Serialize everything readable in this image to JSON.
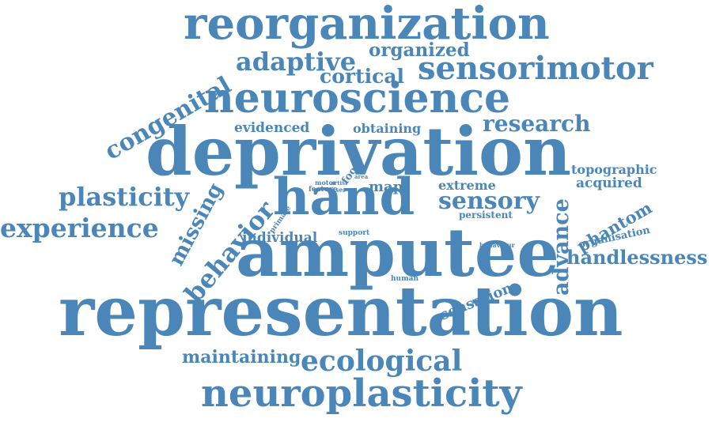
{
  "cloud": {
    "color": "#4a86b8",
    "words": [
      "reorganization",
      "adaptive",
      "organized",
      "congenital",
      "cortical",
      "sensorimotor",
      "neuroscience",
      "evidenced",
      "obtaining",
      "research",
      "deprivation",
      "topographic",
      "plasticity",
      "missing",
      "behavior",
      "primate",
      "feature",
      "motor",
      "artist",
      "user",
      "foot",
      "area",
      "map",
      "hand",
      "extreme",
      "sensory",
      "acquired",
      "advance",
      "experience",
      "persistent",
      "phantom",
      "individual",
      "support",
      "organisation",
      "behaviour",
      "amputee",
      "handlessness",
      "human",
      "sensation",
      "representation",
      "maintaining",
      "ecological",
      "neuroplasticity"
    ]
  }
}
